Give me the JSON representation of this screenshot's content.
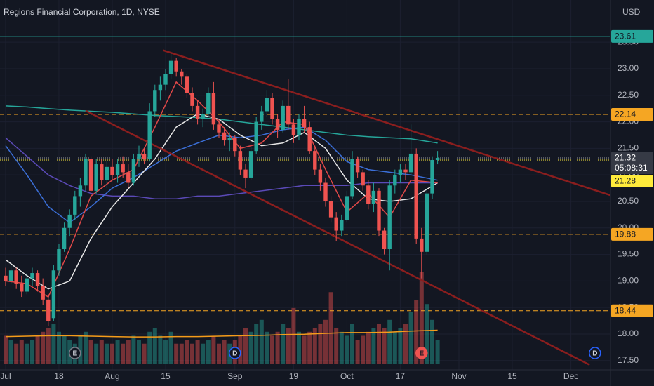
{
  "chart_data": {
    "type": "candlestick",
    "title": "Regions Financial Corporation, 1D, NYSE",
    "currency": "USD",
    "up_color": "#26a69a",
    "down_color": "#ef5350",
    "grid": true,
    "xlim": [
      -1.05,
      113.42
    ],
    "ylim": [
      17.325,
      24.296
    ],
    "xticks": [
      {
        "value": 0,
        "label": "Jul"
      },
      {
        "value": 10,
        "label": "18"
      },
      {
        "value": 20,
        "label": "Aug"
      },
      {
        "value": 30,
        "label": "15"
      },
      {
        "value": 43,
        "label": "Sep"
      },
      {
        "value": 54,
        "label": "19"
      },
      {
        "value": 64,
        "label": "Oct"
      },
      {
        "value": 74,
        "label": "17"
      },
      {
        "value": 85,
        "label": "Nov"
      },
      {
        "value": 95,
        "label": "15"
      },
      {
        "value": 106,
        "label": "Dec"
      }
    ],
    "yticks": [
      {
        "value": 17.5,
        "label": "17.50"
      },
      {
        "value": 18,
        "label": "18.00"
      },
      {
        "value": 18.5,
        "label": "18.50"
      },
      {
        "value": 19,
        "label": "19.00"
      },
      {
        "value": 19.5,
        "label": "19.50"
      },
      {
        "value": 20,
        "label": "20.00"
      },
      {
        "value": 20.5,
        "label": "20.50"
      },
      {
        "value": 21,
        "label": "21.00"
      },
      {
        "value": 21.5,
        "label": "21.50"
      },
      {
        "value": 22,
        "label": "22.00"
      },
      {
        "value": 22.5,
        "label": "22.50"
      },
      {
        "value": 23,
        "label": "23.00"
      },
      {
        "value": 23.5,
        "label": "23.50"
      }
    ],
    "x": [
      0,
      1,
      2,
      3,
      4,
      5,
      6,
      7,
      8,
      9,
      10,
      11,
      12,
      13,
      14,
      15,
      16,
      17,
      18,
      19,
      20,
      21,
      22,
      23,
      24,
      25,
      26,
      27,
      28,
      29,
      30,
      31,
      32,
      33,
      34,
      35,
      36,
      37,
      38,
      39,
      40,
      41,
      42,
      43,
      44,
      45,
      46,
      47,
      48,
      49,
      50,
      51,
      52,
      53,
      54,
      55,
      56,
      57,
      58,
      59,
      60,
      61,
      62,
      63,
      64,
      65,
      66,
      67,
      68,
      69,
      70,
      71,
      72,
      73,
      74,
      75,
      76,
      77,
      78,
      79,
      80,
      81
    ],
    "open": [
      19.1,
      19.0,
      19.2,
      18.95,
      18.8,
      19.05,
      19.15,
      18.9,
      18.65,
      18.3,
      19.2,
      19.6,
      20.0,
      20.25,
      20.6,
      20.8,
      21.3,
      20.7,
      21.2,
      20.9,
      21.15,
      21.0,
      21.2,
      21.05,
      20.85,
      21.3,
      21.4,
      21.3,
      22.2,
      22.6,
      22.7,
      22.9,
      23.15,
      22.95,
      22.85,
      22.55,
      22.3,
      22.05,
      22.15,
      22.55,
      21.95,
      21.8,
      21.65,
      21.7,
      21.45,
      21.1,
      20.95,
      21.45,
      22.0,
      22.2,
      22.45,
      22.05,
      21.85,
      22.3,
      21.95,
      21.75,
      22.05,
      21.9,
      21.45,
      21.1,
      20.85,
      20.5,
      20.2,
      19.95,
      20.15,
      20.6,
      21.3,
      21.05,
      20.8,
      20.45,
      20.7,
      19.95,
      19.6,
      20.8,
      21.0,
      21.1,
      21.05,
      21.4,
      19.8,
      19.55,
      20.65,
      21.28
    ],
    "high": [
      19.25,
      19.3,
      19.25,
      19.1,
      19.15,
      19.25,
      19.2,
      19.05,
      18.75,
      19.3,
      19.7,
      20.1,
      20.35,
      20.7,
      20.95,
      21.4,
      21.35,
      21.3,
      21.3,
      21.25,
      21.3,
      21.3,
      21.35,
      21.2,
      21.4,
      21.55,
      21.5,
      22.35,
      22.7,
      22.85,
      23.0,
      23.3,
      23.2,
      23.0,
      22.9,
      22.65,
      22.4,
      22.25,
      22.65,
      22.75,
      22.05,
      21.9,
      21.8,
      21.75,
      21.55,
      21.2,
      21.55,
      22.1,
      22.3,
      22.6,
      22.55,
      22.15,
      22.4,
      22.8,
      22.05,
      22.15,
      22.3,
      22.0,
      21.55,
      21.2,
      20.95,
      20.6,
      20.3,
      20.25,
      20.7,
      21.45,
      21.35,
      21.1,
      20.9,
      20.85,
      20.75,
      20.0,
      20.9,
      21.1,
      21.2,
      21.2,
      21.95,
      21.5,
      20.0,
      20.75,
      21.35,
      21.45
    ],
    "low": [
      18.9,
      18.95,
      18.85,
      18.7,
      18.75,
      18.9,
      18.8,
      18.55,
      18.15,
      18.25,
      19.1,
      19.55,
      19.85,
      20.15,
      20.4,
      20.7,
      20.6,
      20.65,
      20.8,
      20.75,
      20.9,
      20.85,
      20.95,
      20.75,
      20.8,
      21.15,
      21.2,
      21.25,
      22.1,
      22.4,
      22.6,
      22.8,
      22.85,
      22.7,
      22.45,
      22.2,
      21.95,
      21.9,
      22.1,
      21.85,
      21.7,
      21.55,
      21.45,
      21.35,
      21.0,
      20.75,
      20.9,
      21.4,
      21.85,
      22.1,
      21.95,
      21.7,
      21.8,
      21.85,
      21.6,
      21.65,
      21.8,
      21.4,
      21.0,
      20.7,
      20.4,
      20.1,
      19.75,
      19.85,
      20.1,
      20.55,
      20.95,
      20.7,
      20.35,
      20.3,
      19.85,
      19.5,
      19.2,
      20.65,
      20.85,
      20.9,
      21.0,
      19.7,
      19.05,
      19.5,
      20.55,
      21.2
    ],
    "close": [
      19.0,
      19.2,
      18.95,
      18.8,
      19.05,
      19.15,
      18.9,
      18.65,
      18.25,
      19.2,
      19.6,
      20.0,
      20.25,
      20.6,
      20.8,
      21.3,
      20.7,
      21.2,
      20.9,
      21.15,
      21.0,
      21.2,
      21.05,
      20.85,
      21.3,
      21.4,
      21.3,
      22.2,
      22.6,
      22.7,
      22.9,
      23.15,
      22.95,
      22.85,
      22.55,
      22.3,
      22.05,
      22.15,
      22.55,
      21.95,
      21.8,
      21.65,
      21.7,
      21.45,
      21.1,
      20.95,
      21.45,
      22.0,
      22.2,
      22.45,
      22.05,
      21.85,
      22.3,
      21.95,
      21.75,
      22.05,
      21.9,
      21.45,
      21.1,
      20.85,
      20.5,
      20.2,
      19.95,
      20.15,
      20.6,
      21.3,
      21.05,
      20.8,
      20.45,
      20.7,
      19.95,
      19.6,
      20.8,
      21.0,
      21.1,
      21.05,
      21.4,
      19.8,
      19.55,
      20.65,
      21.28,
      21.32
    ],
    "volume": [
      7,
      6,
      5,
      6,
      5,
      6,
      7,
      8,
      9,
      10,
      8,
      7,
      6,
      5,
      7,
      8,
      6,
      5,
      6,
      5,
      5,
      6,
      5,
      6,
      7,
      6,
      5,
      8,
      9,
      7,
      6,
      8,
      5,
      5,
      6,
      5,
      6,
      5,
      6,
      7,
      5,
      6,
      5,
      6,
      7,
      9,
      8,
      10,
      11,
      8,
      7,
      8,
      10,
      9,
      14,
      8,
      7,
      8,
      9,
      10,
      11,
      18,
      9,
      8,
      7,
      10,
      6,
      7,
      8,
      9,
      10,
      9,
      11,
      8,
      9,
      10,
      13,
      16,
      23,
      15,
      11,
      6
    ],
    "volume_ma": {
      "color": "#f59c1a",
      "x": [
        0,
        4,
        8,
        12,
        16,
        20,
        24,
        28,
        32,
        36,
        40,
        44,
        48,
        52,
        56,
        60,
        64,
        68,
        72,
        76,
        81
      ],
      "values": [
        6.8,
        6.9,
        7.0,
        7.0,
        6.9,
        6.8,
        6.7,
        6.7,
        6.8,
        6.8,
        6.9,
        7.0,
        7.1,
        7.3,
        7.4,
        7.6,
        7.8,
        7.8,
        7.9,
        8.2,
        8.4
      ]
    },
    "moving_averages": [
      {
        "color": "#26a69a",
        "x": [
          0,
          4,
          8,
          12,
          16,
          20,
          24,
          28,
          32,
          36,
          40,
          44,
          48,
          52,
          56,
          60,
          64,
          68,
          72,
          76,
          81
        ],
        "values": [
          22.3,
          22.28,
          22.25,
          22.22,
          22.2,
          22.18,
          22.15,
          22.12,
          22.1,
          22.08,
          22.05,
          22.0,
          21.95,
          21.9,
          21.85,
          21.8,
          21.75,
          21.72,
          21.7,
          21.68,
          21.6
        ]
      },
      {
        "color": "#5b4ab8",
        "x": [
          0,
          4,
          8,
          12,
          16,
          20,
          24,
          28,
          32,
          36,
          40,
          44,
          48,
          52,
          56,
          60,
          64,
          68,
          72,
          76,
          81
        ],
        "values": [
          21.7,
          21.35,
          21.0,
          20.8,
          20.65,
          20.6,
          20.6,
          20.55,
          20.55,
          20.6,
          20.6,
          20.65,
          20.7,
          20.75,
          20.8,
          20.8,
          20.8,
          20.85,
          20.85,
          20.85,
          20.85
        ]
      },
      {
        "color": "#3b6fd8",
        "x": [
          0,
          4,
          8,
          12,
          16,
          20,
          24,
          28,
          32,
          36,
          40,
          44,
          48,
          52,
          56,
          60,
          64,
          68,
          72,
          76,
          81
        ],
        "values": [
          21.55,
          21.0,
          20.4,
          20.1,
          20.4,
          20.75,
          20.95,
          21.2,
          21.45,
          21.6,
          21.75,
          21.7,
          21.75,
          21.85,
          21.9,
          21.65,
          21.25,
          21.1,
          21.05,
          21.0,
          20.9
        ]
      },
      {
        "color": "#e6e6e6",
        "x": [
          0,
          4,
          8,
          12,
          16,
          20,
          24,
          28,
          32,
          36,
          40,
          44,
          48,
          52,
          56,
          60,
          64,
          68,
          72,
          76,
          81
        ],
        "values": [
          19.4,
          19.1,
          18.85,
          19.0,
          19.8,
          20.4,
          20.85,
          21.3,
          21.9,
          22.15,
          22.05,
          21.75,
          21.55,
          21.6,
          21.8,
          21.5,
          20.9,
          20.55,
          20.5,
          20.55,
          20.85
        ]
      },
      {
        "color": "#e04848",
        "x": [
          0,
          4,
          8,
          12,
          16,
          20,
          24,
          28,
          32,
          36,
          40,
          44,
          48,
          52,
          56,
          60,
          64,
          68,
          72,
          76,
          81
        ],
        "values": [
          19.0,
          18.95,
          18.7,
          19.6,
          20.6,
          20.9,
          21.1,
          21.9,
          22.75,
          22.4,
          22.0,
          21.5,
          21.6,
          22.0,
          21.95,
          21.1,
          20.3,
          20.65,
          20.2,
          20.9,
          20.85
        ]
      }
    ],
    "trend_lines": [
      {
        "color": "#8b1e1e",
        "x": [
          29.5,
          121.6
        ],
        "y": [
          23.35,
          20.35
        ]
      },
      {
        "color": "#8b1e1e",
        "x": [
          15,
          109.5
        ],
        "y": [
          22.21,
          17.42
        ]
      }
    ],
    "price_lines": [
      {
        "value": 23.61,
        "color": "#26a69a",
        "style": "solid",
        "text_color": "#131722"
      },
      {
        "value": 22.14,
        "color": "#f5a623",
        "style": "dashed",
        "text_color": "#131722"
      },
      {
        "value": 21.32,
        "color": "#9598a1",
        "style": "dotted",
        "text_color": "#ffffff",
        "tag_color": "#363a45",
        "countdown": "05:08:31"
      },
      {
        "value": 21.28,
        "color": "#ffeb3b",
        "style": "dotted",
        "text_color": "#131722"
      },
      {
        "value": 19.88,
        "color": "#f5a623",
        "style": "dashed",
        "text_color": "#131722"
      },
      {
        "value": 18.44,
        "color": "#f5a623",
        "style": "dashed",
        "text_color": "#131722"
      }
    ],
    "events": [
      {
        "x": 13,
        "label": "E",
        "color": "#787b86",
        "fill": "#131722"
      },
      {
        "x": 43,
        "label": "D",
        "color": "#2962ff",
        "fill": "#131722"
      },
      {
        "x": 78,
        "label": "E",
        "color": "#f05350",
        "fill": "#f05350"
      },
      {
        "x": 110.5,
        "label": "D",
        "color": "#2962ff",
        "fill": "#131722"
      }
    ]
  }
}
